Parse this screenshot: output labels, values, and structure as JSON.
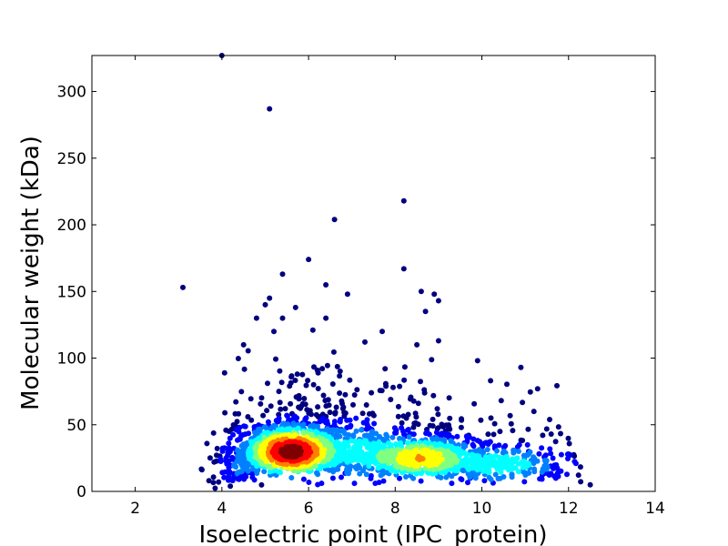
{
  "chart_data": {
    "type": "scatter",
    "title": "",
    "xlabel": "Isoelectric point (IPC_protein)",
    "ylabel": "Molecular weight (kDa)",
    "xlim": [
      1,
      14
    ],
    "ylim": [
      0,
      327
    ],
    "xticks": [
      2,
      4,
      6,
      8,
      10,
      12,
      14
    ],
    "yticks": [
      0,
      50,
      100,
      150,
      200,
      250,
      300
    ],
    "grid": false,
    "legend": "none",
    "color_scale": [
      "#00007f",
      "#0000ff",
      "#0080ff",
      "#00ffff",
      "#80ff80",
      "#ffff00",
      "#ff8000",
      "#ff0000",
      "#7f0000"
    ],
    "density_clusters": [
      {
        "x": 5.6,
        "y": 30,
        "sx": 0.7,
        "sy": 12,
        "n": 1300
      },
      {
        "x": 8.6,
        "y": 25,
        "sx": 0.8,
        "sy": 10,
        "n": 700
      },
      {
        "x": 10.5,
        "y": 20,
        "sx": 0.9,
        "sy": 10,
        "n": 280
      },
      {
        "x": 7.2,
        "y": 30,
        "sx": 0.7,
        "sy": 15,
        "n": 220
      },
      {
        "x": 4.3,
        "y": 15,
        "sx": 0.3,
        "sy": 8,
        "n": 70
      }
    ],
    "outliers": [
      {
        "x": 4.0,
        "y": 327
      },
      {
        "x": 5.1,
        "y": 287
      },
      {
        "x": 8.2,
        "y": 218
      },
      {
        "x": 6.6,
        "y": 204
      },
      {
        "x": 6.0,
        "y": 174
      },
      {
        "x": 3.1,
        "y": 153
      },
      {
        "x": 8.2,
        "y": 167
      },
      {
        "x": 5.4,
        "y": 163
      },
      {
        "x": 6.4,
        "y": 155
      },
      {
        "x": 8.6,
        "y": 150
      },
      {
        "x": 8.9,
        "y": 148
      },
      {
        "x": 9.0,
        "y": 143
      },
      {
        "x": 6.9,
        "y": 148
      },
      {
        "x": 5.1,
        "y": 145
      },
      {
        "x": 8.7,
        "y": 135
      },
      {
        "x": 5.7,
        "y": 138
      },
      {
        "x": 5.0,
        "y": 140
      },
      {
        "x": 6.4,
        "y": 130
      },
      {
        "x": 4.8,
        "y": 130
      },
      {
        "x": 5.4,
        "y": 130
      },
      {
        "x": 7.7,
        "y": 120
      },
      {
        "x": 9.0,
        "y": 113
      },
      {
        "x": 10.9,
        "y": 93
      },
      {
        "x": 9.9,
        "y": 98
      },
      {
        "x": 10.2,
        "y": 83
      },
      {
        "x": 12.5,
        "y": 5
      },
      {
        "x": 11.2,
        "y": 60
      },
      {
        "x": 4.5,
        "y": 110
      },
      {
        "x": 8.5,
        "y": 110
      },
      {
        "x": 7.3,
        "y": 112
      },
      {
        "x": 6.1,
        "y": 121
      },
      {
        "x": 5.2,
        "y": 120
      },
      {
        "x": 3.7,
        "y": 8
      },
      {
        "x": 12.0,
        "y": 28
      },
      {
        "x": 11.6,
        "y": 43
      }
    ]
  }
}
